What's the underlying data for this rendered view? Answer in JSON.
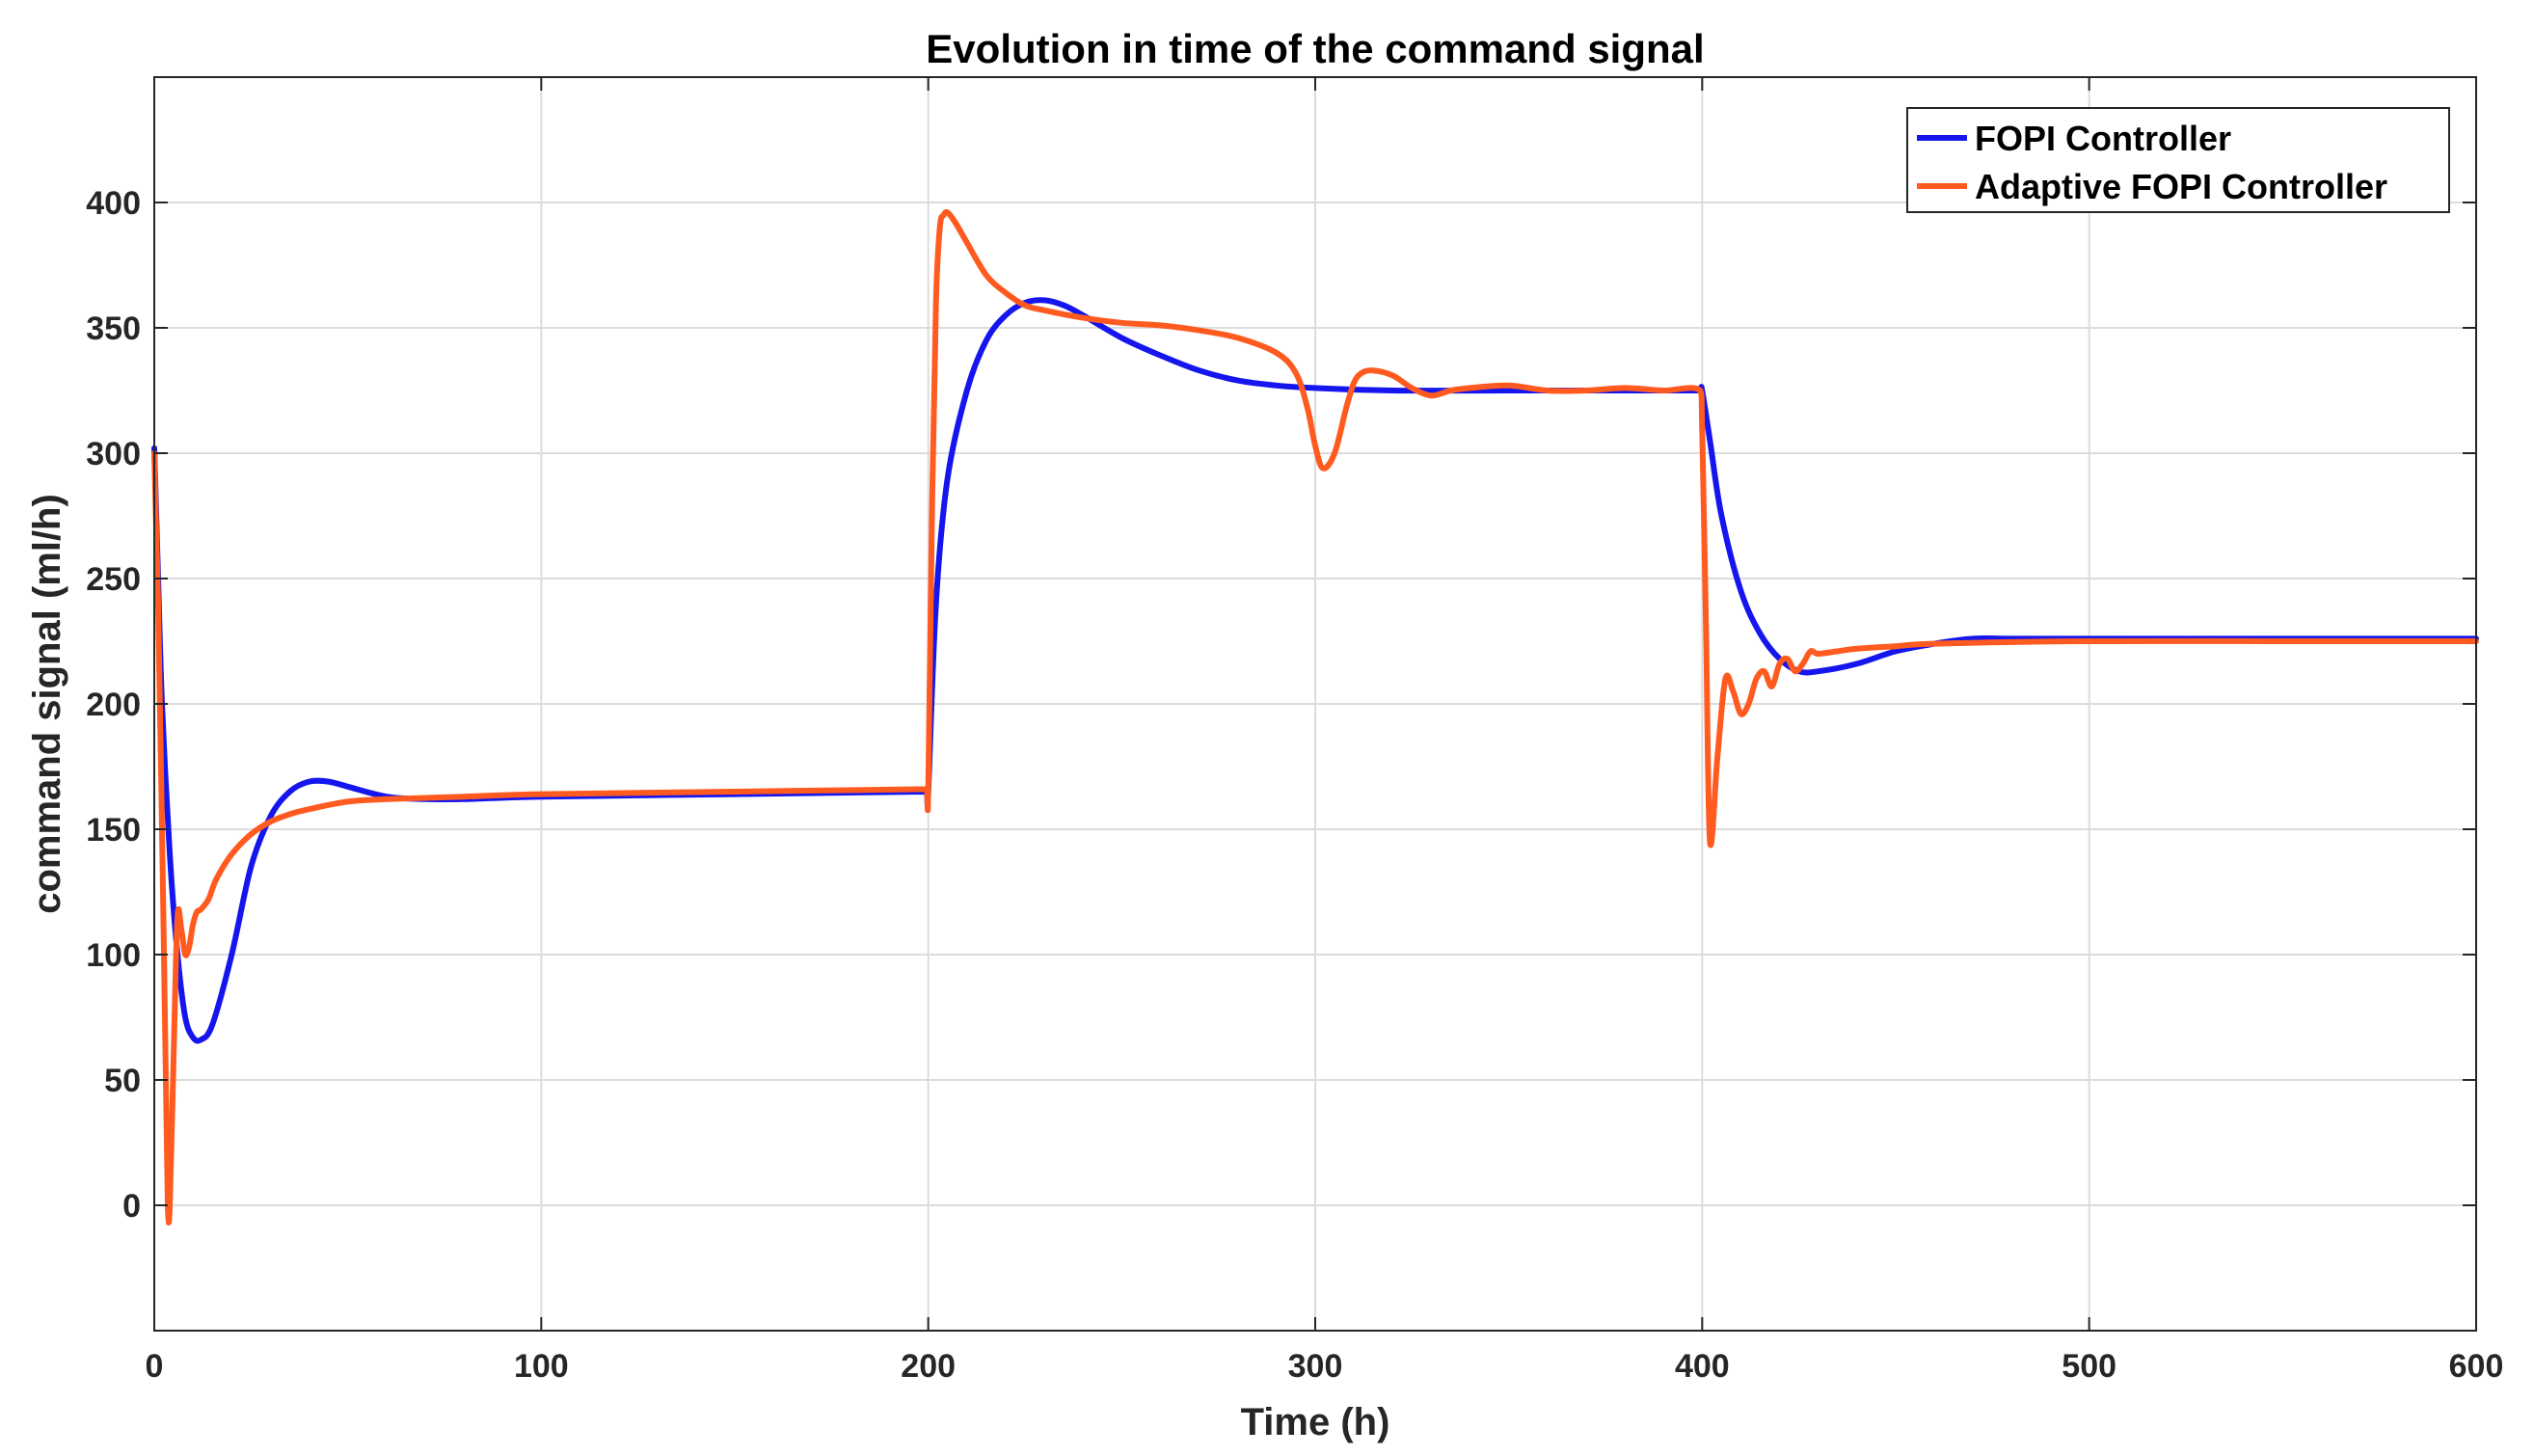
{
  "chart_data": {
    "type": "line",
    "title": "Evolution in time of the command signal",
    "xlabel": "Time (h)",
    "ylabel": "command signal (ml/h)",
    "xlim": [
      0,
      600
    ],
    "ylim": [
      -50,
      450
    ],
    "xticks": [
      0,
      100,
      200,
      300,
      400,
      500,
      600
    ],
    "yticks": [
      0,
      50,
      100,
      150,
      200,
      250,
      300,
      350,
      400
    ],
    "xtick_labels": [
      "0",
      "100",
      "200",
      "300",
      "400",
      "500",
      "600"
    ],
    "ytick_labels": [
      "0",
      "50",
      "100",
      "150",
      "200",
      "250",
      "300",
      "350",
      "400"
    ],
    "grid": true,
    "legend_position": "top-right",
    "series": [
      {
        "name": "FOPI Controller",
        "color": "#1515ee",
        "x": [
          0,
          1,
          2,
          4,
          6,
          8,
          10,
          12,
          15,
          20,
          25,
          30,
          35,
          40,
          45,
          50,
          60,
          70,
          80,
          100,
          150,
          199.5,
          200,
          202,
          205,
          210,
          215,
          220,
          225,
          230,
          235,
          240,
          250,
          260,
          270,
          280,
          290,
          300,
          320,
          350,
          380,
          399.5,
          400,
          402,
          405,
          410,
          415,
          420,
          425,
          430,
          440,
          450,
          460,
          470,
          480,
          500,
          550,
          600
        ],
        "y": [
          302,
          250,
          200,
          140,
          100,
          75,
          67,
          66,
          72,
          100,
          135,
          155,
          165,
          169,
          169,
          167,
          163,
          162,
          162,
          163,
          164,
          165,
          165,
          240,
          290,
          325,
          345,
          355,
          360,
          361,
          359,
          355,
          346,
          339,
          333,
          329,
          327,
          326,
          325,
          325,
          325,
          325,
          325,
          305,
          275,
          245,
          228,
          218,
          213,
          213,
          216,
          221,
          224,
          226,
          226,
          226,
          226,
          226
        ]
      },
      {
        "name": "Adaptive FOPI Controller",
        "color": "#ff5a1f",
        "x": [
          0,
          1,
          2,
          3,
          3.5,
          4,
          5,
          6,
          7,
          8,
          9,
          10,
          11,
          12,
          14,
          16,
          20,
          25,
          30,
          35,
          40,
          50,
          60,
          80,
          100,
          150,
          199.5,
          200,
          201,
          202,
          203,
          204,
          205,
          207,
          210,
          215,
          220,
          225,
          230,
          240,
          250,
          260,
          270,
          280,
          290,
          295,
          298,
          300,
          302,
          305,
          308,
          310,
          312,
          315,
          320,
          325,
          330,
          335,
          340,
          350,
          360,
          370,
          380,
          390,
          399.5,
          400,
          401,
          402,
          404,
          406,
          408,
          410,
          412,
          414,
          416,
          418,
          420,
          422,
          424,
          426,
          428,
          430,
          435,
          440,
          450,
          460,
          500,
          550,
          600
        ],
        "y": [
          300,
          240,
          150,
          50,
          0,
          0,
          60,
          115,
          110,
          100,
          103,
          112,
          117,
          118,
          122,
          130,
          140,
          148,
          153,
          156,
          158,
          161,
          162,
          163,
          164,
          165,
          166,
          166,
          280,
          360,
          390,
          395,
          396,
          392,
          384,
          371,
          364,
          359,
          357,
          354,
          352,
          351,
          349,
          346,
          340,
          332,
          318,
          303,
          294,
          300,
          318,
          328,
          332,
          333,
          331,
          326,
          323,
          325,
          326,
          327,
          325,
          325,
          326,
          325,
          325,
          310,
          230,
          145,
          180,
          210,
          205,
          196,
          200,
          210,
          213,
          207,
          216,
          218,
          213,
          216,
          221,
          220,
          221,
          222,
          223,
          224,
          225,
          225,
          225
        ]
      }
    ]
  }
}
